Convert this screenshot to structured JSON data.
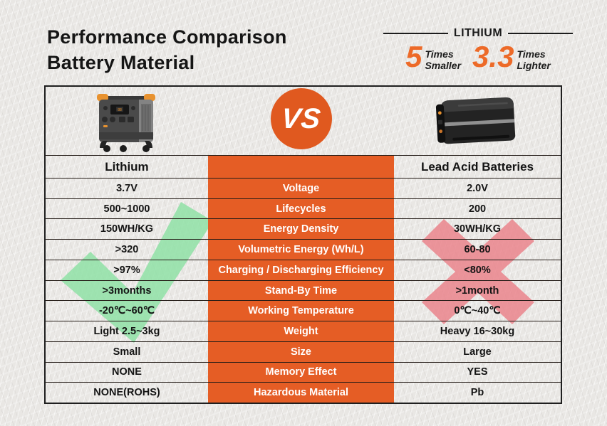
{
  "header": {
    "title_line1": "Performance Comparison",
    "title_line2": "Battery Material",
    "lithium_label": "LITHIUM",
    "stats": [
      {
        "value": "5",
        "line1": "Times",
        "line2": "Smaller"
      },
      {
        "value": "3.3",
        "line1": "Times",
        "line2": "Lighter"
      }
    ]
  },
  "comparison": {
    "vs_label": "VS",
    "columns": {
      "left": "Lithium",
      "right": "Lead Acid Batteries"
    },
    "rows": [
      {
        "attribute": "Voltage",
        "lithium": "3.7V",
        "lead_acid": "2.0V"
      },
      {
        "attribute": "Lifecycles",
        "lithium": "500~1000",
        "lead_acid": "200"
      },
      {
        "attribute": "Energy Density",
        "lithium": "150WH/KG",
        "lead_acid": "30WH/KG"
      },
      {
        "attribute": "Volumetric Energy (Wh/L)",
        "lithium": ">320",
        "lead_acid": "60-80"
      },
      {
        "attribute": "Charging / Discharging Efficiency",
        "lithium": ">97%",
        "lead_acid": "<80%"
      },
      {
        "attribute": "Stand-By Time",
        "lithium": ">3months",
        "lead_acid": ">1month"
      },
      {
        "attribute": "Working Temperature",
        "lithium": "-20℃~60℃",
        "lead_acid": "0℃~40℃"
      },
      {
        "attribute": "Weight",
        "lithium": "Light 2.5~3kg",
        "lead_acid": "Heavy 16~30kg"
      },
      {
        "attribute": "Size",
        "lithium": "Small",
        "lead_acid": "Large"
      },
      {
        "attribute": "Memory Effect",
        "lithium": "NONE",
        "lead_acid": "YES"
      },
      {
        "attribute": "Hazardous Material",
        "lithium": "NONE(ROHS)",
        "lead_acid": "Pb"
      }
    ],
    "verdict": {
      "lithium": "check",
      "lead_acid": "cross"
    }
  },
  "colors": {
    "accent_orange": "#E55D25",
    "stat_orange": "#ED6A28",
    "check_green": "#8FE0A6",
    "cross_red": "#EA848C",
    "text_dark": "#151515"
  }
}
